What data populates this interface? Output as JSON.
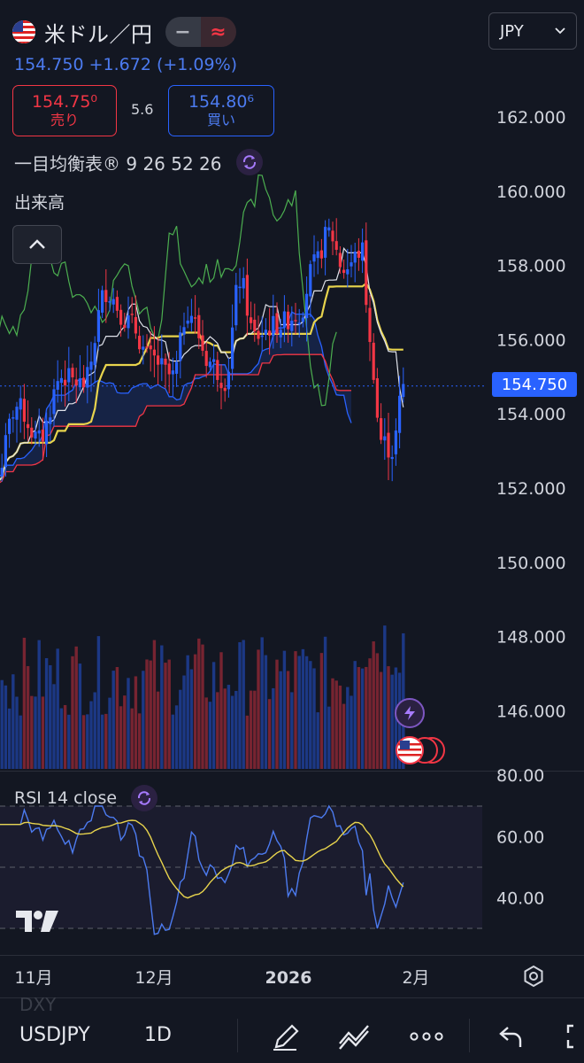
{
  "header": {
    "symbol_label": "米ドル／円",
    "mode_left": "−",
    "mode_right": "≈",
    "currency": "JPY",
    "quote": "154.750 +1.672 (+1.09%)"
  },
  "trade": {
    "sell_price": "154.75⁰",
    "sell_label": "売り",
    "spread": "5.6",
    "buy_price": "154.80⁶",
    "buy_label": "買い"
  },
  "indicators": {
    "ichimoku": "一目均衡表® 9 26 52 26",
    "volume": "出来高",
    "rsi": "RSI 14 close"
  },
  "price_axis": {
    "ticks": [
      "162.000",
      "160.000",
      "158.000",
      "156.000",
      "154.000",
      "152.000",
      "150.000",
      "148.000",
      "146.000"
    ],
    "last_price": "154.750"
  },
  "rsi_axis": {
    "ticks": [
      "80.00",
      "60.00",
      "40.00"
    ]
  },
  "time_axis": {
    "ticks": [
      "11月",
      "12月",
      "2026",
      "2月"
    ]
  },
  "bottom_bar": {
    "ghost_symbol": "DXY",
    "symbol": "USDJPY",
    "timeframe": "1D"
  },
  "colors": {
    "up": "#2962ff",
    "down": "#f23645",
    "tenkan": "#e0e3eb",
    "kijun": "#e8d44d",
    "chikou": "#4caf50",
    "span_a": "#2962ff",
    "span_b": "#f23645",
    "rsi": "#4c7bf0",
    "rsi_ma": "#e8d44d"
  },
  "icons": {
    "flag": "us-flag-icon",
    "collapse": "chevron-up-icon",
    "refresh": "cycle-icon",
    "settings": "gear-icon",
    "draw": "pencil-icon",
    "indicators": "indicators-icon",
    "more": "more-dots-icon",
    "undo": "undo-icon"
  }
}
